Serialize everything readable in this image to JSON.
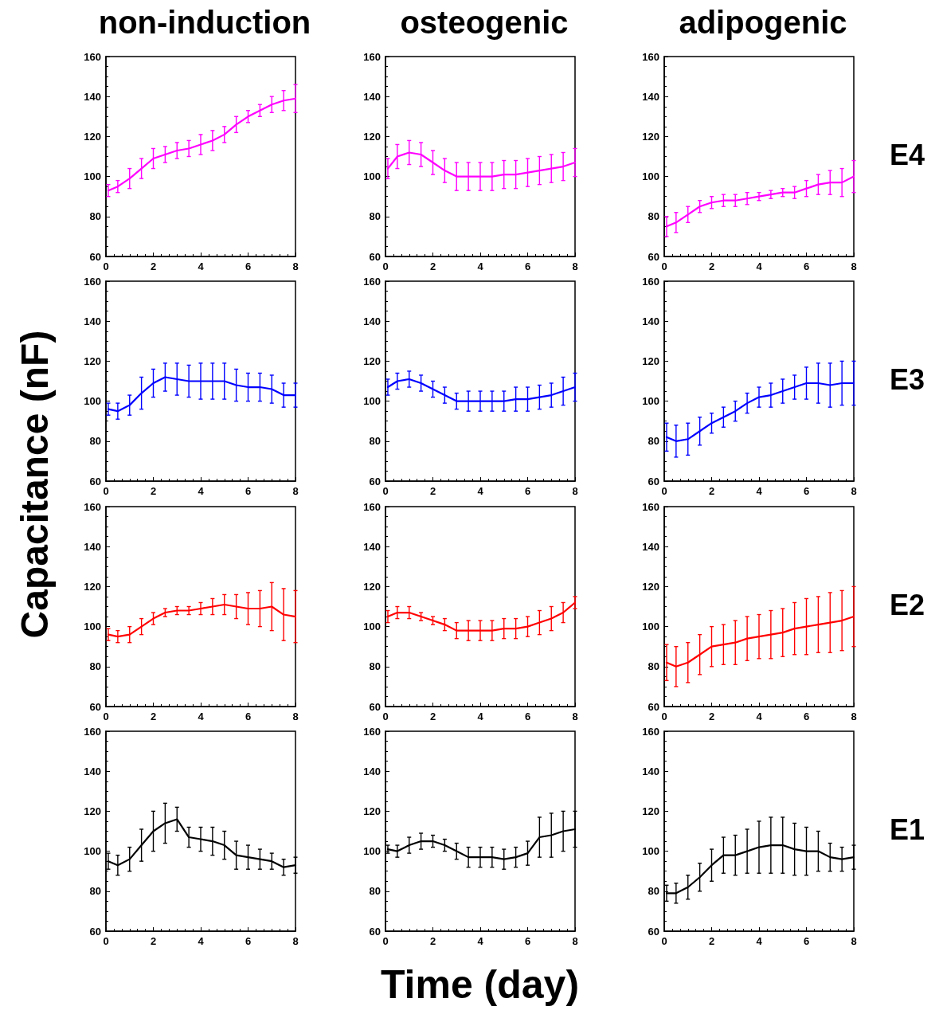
{
  "chart_data": [
    {
      "type": "line",
      "title": "non-induction",
      "x": [
        0.1,
        0.5,
        1,
        1.5,
        2,
        2.5,
        3,
        3.5,
        4,
        4.5,
        5,
        5.5,
        6,
        6.5,
        7,
        7.5,
        8
      ],
      "series": [
        {
          "color": "#ff00ff",
          "values": [
            93,
            95,
            99,
            104,
            109,
            111,
            113,
            114,
            116,
            118,
            121,
            126,
            130,
            133,
            136,
            138,
            139
          ],
          "errors": [
            3,
            3,
            5,
            5,
            5,
            4,
            4,
            4,
            5,
            5,
            4,
            4,
            3,
            3,
            4,
            5,
            7
          ]
        }
      ],
      "xlim": [
        0,
        8
      ],
      "ylim": [
        60,
        160
      ],
      "xticks": [
        0,
        2,
        4,
        6,
        8
      ],
      "yticks": [
        60,
        80,
        100,
        120,
        140,
        160
      ],
      "grid": false,
      "marker": "none",
      "line_style": "solid"
    },
    {
      "type": "line",
      "title": "osteogenic",
      "x": [
        0.1,
        0.5,
        1,
        1.5,
        2,
        2.5,
        3,
        3.5,
        4,
        4.5,
        5,
        5.5,
        6,
        6.5,
        7,
        7.5,
        8
      ],
      "series": [
        {
          "color": "#ff00ff",
          "values": [
            104,
            110,
            112,
            111,
            107,
            103,
            100,
            100,
            100,
            100,
            101,
            101,
            102,
            103,
            104,
            105,
            107
          ],
          "errors": [
            5,
            6,
            6,
            6,
            6,
            6,
            7,
            7,
            7,
            7,
            7,
            7,
            7,
            7,
            7,
            7,
            7
          ]
        }
      ],
      "xlim": [
        0,
        8
      ],
      "ylim": [
        60,
        160
      ],
      "xticks": [
        0,
        2,
        4,
        6,
        8
      ],
      "yticks": [
        60,
        80,
        100,
        120,
        140,
        160
      ],
      "grid": false,
      "marker": "none",
      "line_style": "solid"
    },
    {
      "type": "line",
      "title": "adipogenic",
      "annotations": [
        "E4"
      ],
      "x": [
        0.1,
        0.5,
        1,
        1.5,
        2,
        2.5,
        3,
        3.5,
        4,
        4.5,
        5,
        5.5,
        6,
        6.5,
        7,
        7.5,
        8
      ],
      "series": [
        {
          "color": "#ff00ff",
          "values": [
            75,
            77,
            81,
            85,
            87,
            88,
            88,
            89,
            90,
            91,
            92,
            92,
            94,
            96,
            97,
            97,
            100
          ],
          "errors": [
            5,
            5,
            4,
            3,
            3,
            3,
            3,
            3,
            2,
            2,
            2,
            3,
            4,
            5,
            6,
            7,
            8
          ]
        }
      ],
      "xlim": [
        0,
        8
      ],
      "ylim": [
        60,
        160
      ],
      "xticks": [
        0,
        2,
        4,
        6,
        8
      ],
      "yticks": [
        60,
        80,
        100,
        120,
        140,
        160
      ],
      "grid": false,
      "marker": "none",
      "line_style": "solid"
    },
    {
      "type": "line",
      "ylabel": "Capacitance (nF)",
      "x": [
        0.1,
        0.5,
        1,
        1.5,
        2,
        2.5,
        3,
        3.5,
        4,
        4.5,
        5,
        5.5,
        6,
        6.5,
        7,
        7.5,
        8
      ],
      "series": [
        {
          "color": "#0000ff",
          "values": [
            96,
            95,
            98,
            104,
            109,
            112,
            111,
            110,
            110,
            110,
            110,
            108,
            107,
            107,
            106,
            103,
            103
          ],
          "errors": [
            3,
            4,
            5,
            8,
            7,
            7,
            8,
            8,
            9,
            9,
            9,
            8,
            7,
            7,
            7,
            6,
            6
          ]
        }
      ],
      "xlim": [
        0,
        8
      ],
      "ylim": [
        60,
        160
      ],
      "xticks": [
        0,
        2,
        4,
        6,
        8
      ],
      "yticks": [
        60,
        80,
        100,
        120,
        140,
        160
      ],
      "grid": false,
      "marker": "none",
      "line_style": "solid"
    },
    {
      "type": "line",
      "x": [
        0.1,
        0.5,
        1,
        1.5,
        2,
        2.5,
        3,
        3.5,
        4,
        4.5,
        5,
        5.5,
        6,
        6.5,
        7,
        7.5,
        8
      ],
      "series": [
        {
          "color": "#0000ff",
          "values": [
            107,
            110,
            111,
            109,
            106,
            103,
            100,
            100,
            100,
            100,
            100,
            101,
            101,
            102,
            103,
            105,
            107
          ],
          "errors": [
            4,
            4,
            4,
            4,
            4,
            4,
            4,
            5,
            5,
            5,
            5,
            6,
            6,
            6,
            6,
            7,
            7
          ]
        }
      ],
      "xlim": [
        0,
        8
      ],
      "ylim": [
        60,
        160
      ],
      "xticks": [
        0,
        2,
        4,
        6,
        8
      ],
      "yticks": [
        60,
        80,
        100,
        120,
        140,
        160
      ],
      "grid": false,
      "marker": "none",
      "line_style": "solid"
    },
    {
      "type": "line",
      "annotations": [
        "E3"
      ],
      "x": [
        0.1,
        0.5,
        1,
        1.5,
        2,
        2.5,
        3,
        3.5,
        4,
        4.5,
        5,
        5.5,
        6,
        6.5,
        7,
        7.5,
        8
      ],
      "series": [
        {
          "color": "#0000ff",
          "values": [
            82,
            80,
            81,
            85,
            89,
            92,
            95,
            99,
            102,
            103,
            105,
            107,
            109,
            109,
            108,
            109,
            109
          ],
          "errors": [
            7,
            8,
            8,
            7,
            5,
            5,
            5,
            5,
            5,
            6,
            6,
            6,
            8,
            10,
            11,
            11,
            11
          ]
        }
      ],
      "xlim": [
        0,
        8
      ],
      "ylim": [
        60,
        160
      ],
      "xticks": [
        0,
        2,
        4,
        6,
        8
      ],
      "yticks": [
        60,
        80,
        100,
        120,
        140,
        160
      ],
      "grid": false,
      "marker": "none",
      "line_style": "solid"
    },
    {
      "type": "line",
      "x": [
        0.1,
        0.5,
        1,
        1.5,
        2,
        2.5,
        3,
        3.5,
        4,
        4.5,
        5,
        5.5,
        6,
        6.5,
        7,
        7.5,
        8
      ],
      "series": [
        {
          "color": "#ff0000",
          "values": [
            96,
            95,
            96,
            100,
            104,
            107,
            108,
            108,
            109,
            110,
            111,
            110,
            109,
            109,
            110,
            106,
            105
          ],
          "errors": [
            3,
            3,
            4,
            4,
            3,
            2,
            2,
            2,
            3,
            4,
            5,
            6,
            8,
            9,
            12,
            13,
            13
          ]
        }
      ],
      "xlim": [
        0,
        8
      ],
      "ylim": [
        60,
        160
      ],
      "xticks": [
        0,
        2,
        4,
        6,
        8
      ],
      "yticks": [
        60,
        80,
        100,
        120,
        140,
        160
      ],
      "grid": false,
      "marker": "none",
      "line_style": "solid"
    },
    {
      "type": "line",
      "x": [
        0.1,
        0.5,
        1,
        1.5,
        2,
        2.5,
        3,
        3.5,
        4,
        4.5,
        5,
        5.5,
        6,
        6.5,
        7,
        7.5,
        8
      ],
      "series": [
        {
          "color": "#ff0000",
          "values": [
            105,
            107,
            107,
            105,
            103,
            101,
            98,
            98,
            98,
            98,
            99,
            99,
            100,
            102,
            104,
            107,
            112
          ],
          "errors": [
            3,
            3,
            3,
            2,
            2,
            3,
            4,
            5,
            5,
            5,
            5,
            5,
            5,
            6,
            6,
            5,
            3
          ]
        }
      ],
      "xlim": [
        0,
        8
      ],
      "ylim": [
        60,
        160
      ],
      "xticks": [
        0,
        2,
        4,
        6,
        8
      ],
      "yticks": [
        60,
        80,
        100,
        120,
        140,
        160
      ],
      "grid": false,
      "marker": "none",
      "line_style": "solid"
    },
    {
      "type": "line",
      "annotations": [
        "E2"
      ],
      "x": [
        0.1,
        0.5,
        1,
        1.5,
        2,
        2.5,
        3,
        3.5,
        4,
        4.5,
        5,
        5.5,
        6,
        6.5,
        7,
        7.5,
        8
      ],
      "series": [
        {
          "color": "#ff0000",
          "values": [
            82,
            80,
            82,
            86,
            90,
            91,
            92,
            94,
            95,
            96,
            97,
            99,
            100,
            101,
            102,
            103,
            105
          ],
          "errors": [
            9,
            10,
            10,
            10,
            10,
            10,
            11,
            11,
            11,
            12,
            12,
            13,
            14,
            14,
            15,
            15,
            15
          ]
        }
      ],
      "xlim": [
        0,
        8
      ],
      "ylim": [
        60,
        160
      ],
      "xticks": [
        0,
        2,
        4,
        6,
        8
      ],
      "yticks": [
        60,
        80,
        100,
        120,
        140,
        160
      ],
      "grid": false,
      "marker": "none",
      "line_style": "solid"
    },
    {
      "type": "line",
      "x": [
        0.1,
        0.5,
        1,
        1.5,
        2,
        2.5,
        3,
        3.5,
        4,
        4.5,
        5,
        5.5,
        6,
        6.5,
        7,
        7.5,
        8
      ],
      "series": [
        {
          "color": "#000000",
          "values": [
            95,
            93,
            96,
            103,
            110,
            114,
            116,
            107,
            106,
            105,
            103,
            98,
            97,
            96,
            95,
            92,
            93
          ],
          "errors": [
            4,
            5,
            6,
            8,
            10,
            10,
            6,
            5,
            6,
            7,
            7,
            7,
            6,
            5,
            4,
            4,
            4
          ]
        }
      ],
      "xlim": [
        0,
        8
      ],
      "ylim": [
        60,
        160
      ],
      "xticks": [
        0,
        2,
        4,
        6,
        8
      ],
      "yticks": [
        60,
        80,
        100,
        120,
        140,
        160
      ],
      "grid": false,
      "marker": "none",
      "line_style": "solid"
    },
    {
      "type": "line",
      "xlabel": "Time (day)",
      "x": [
        0.1,
        0.5,
        1,
        1.5,
        2,
        2.5,
        3,
        3.5,
        4,
        4.5,
        5,
        5.5,
        6,
        6.5,
        7,
        7.5,
        8
      ],
      "series": [
        {
          "color": "#000000",
          "values": [
            101,
            100,
            103,
            105,
            105,
            103,
            100,
            97,
            97,
            97,
            96,
            97,
            99,
            107,
            108,
            110,
            111
          ],
          "errors": [
            2,
            3,
            4,
            4,
            3,
            3,
            4,
            5,
            5,
            5,
            5,
            5,
            6,
            10,
            11,
            10,
            9
          ]
        }
      ],
      "xlim": [
        0,
        8
      ],
      "ylim": [
        60,
        160
      ],
      "xticks": [
        0,
        2,
        4,
        6,
        8
      ],
      "yticks": [
        60,
        80,
        100,
        120,
        140,
        160
      ],
      "grid": false,
      "marker": "none",
      "line_style": "solid"
    },
    {
      "type": "line",
      "annotations": [
        "E1"
      ],
      "x": [
        0.1,
        0.5,
        1,
        1.5,
        2,
        2.5,
        3,
        3.5,
        4,
        4.5,
        5,
        5.5,
        6,
        6.5,
        7,
        7.5,
        8
      ],
      "series": [
        {
          "color": "#000000",
          "values": [
            79,
            79,
            82,
            87,
            93,
            98,
            98,
            100,
            102,
            103,
            103,
            101,
            100,
            100,
            97,
            96,
            97
          ],
          "errors": [
            4,
            5,
            6,
            7,
            8,
            9,
            10,
            11,
            13,
            14,
            14,
            13,
            12,
            10,
            7,
            6,
            6
          ]
        }
      ],
      "xlim": [
        0,
        8
      ],
      "ylim": [
        60,
        160
      ],
      "xticks": [
        0,
        2,
        4,
        6,
        8
      ],
      "yticks": [
        60,
        80,
        100,
        120,
        140,
        160
      ],
      "grid": false,
      "marker": "none",
      "line_style": "solid"
    }
  ]
}
